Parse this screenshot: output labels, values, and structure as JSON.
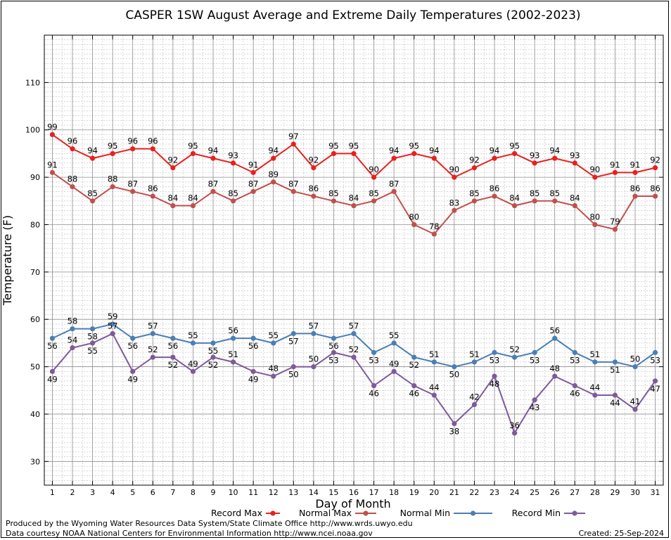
{
  "chart_data": {
    "type": "line",
    "title": "CASPER 1SW August Average and Extreme Daily Temperatures (2002-2023)",
    "xlabel": "Day of Month",
    "ylabel": "Temperature (F)",
    "x": [
      1,
      2,
      3,
      4,
      5,
      6,
      7,
      8,
      9,
      10,
      11,
      12,
      13,
      14,
      15,
      16,
      17,
      18,
      19,
      20,
      21,
      22,
      23,
      24,
      25,
      26,
      27,
      28,
      29,
      30,
      31
    ],
    "xlim": [
      0.6,
      31.4
    ],
    "ylim": [
      25,
      120
    ],
    "yticks": [
      30,
      40,
      50,
      60,
      70,
      80,
      90,
      100,
      110
    ],
    "grid": true,
    "legend_position": "bottom",
    "series": [
      {
        "name": "Record Max",
        "color": "#e8211e",
        "label_pos": "above",
        "values": [
          99,
          96,
          94,
          95,
          96,
          96,
          92,
          95,
          94,
          93,
          91,
          94,
          97,
          92,
          95,
          95,
          90,
          94,
          95,
          94,
          90,
          92,
          94,
          95,
          93,
          94,
          93,
          90,
          91,
          91,
          92
        ]
      },
      {
        "name": "Normal Max",
        "color": "#c0504d",
        "label_pos": "above",
        "values": [
          91,
          88,
          85,
          88,
          87,
          86,
          84,
          84,
          87,
          85,
          87,
          89,
          87,
          86,
          85,
          84,
          85,
          87,
          80,
          78,
          83,
          85,
          86,
          84,
          85,
          85,
          84,
          80,
          79,
          86,
          86
        ]
      },
      {
        "name": "Normal Min",
        "color": "#4a7fb5",
        "label_pos": "alt",
        "values": [
          56,
          58,
          58,
          59,
          56,
          57,
          56,
          55,
          55,
          56,
          56,
          55,
          57,
          57,
          56,
          57,
          53,
          55,
          52,
          51,
          50,
          51,
          53,
          52,
          53,
          56,
          53,
          51,
          51,
          50,
          53
        ]
      },
      {
        "name": "Record Min",
        "color": "#7e5a9b",
        "label_pos": "alt",
        "values": [
          49,
          54,
          55,
          57,
          49,
          52,
          52,
          49,
          52,
          51,
          49,
          48,
          50,
          50,
          53,
          52,
          46,
          49,
          46,
          44,
          38,
          42,
          48,
          36,
          43,
          48,
          46,
          44,
          44,
          41,
          47
        ]
      }
    ]
  },
  "footer": {
    "produced_by": "Produced by the Wyoming Water Resources Data System/State Climate Office http://www.wrds.uwyo.edu",
    "data_courtesy": "Data courtesy NOAA National Centers for Environmental Information http://www.ncei.noaa.gov",
    "created": "Created:  25-Sep-2024"
  }
}
